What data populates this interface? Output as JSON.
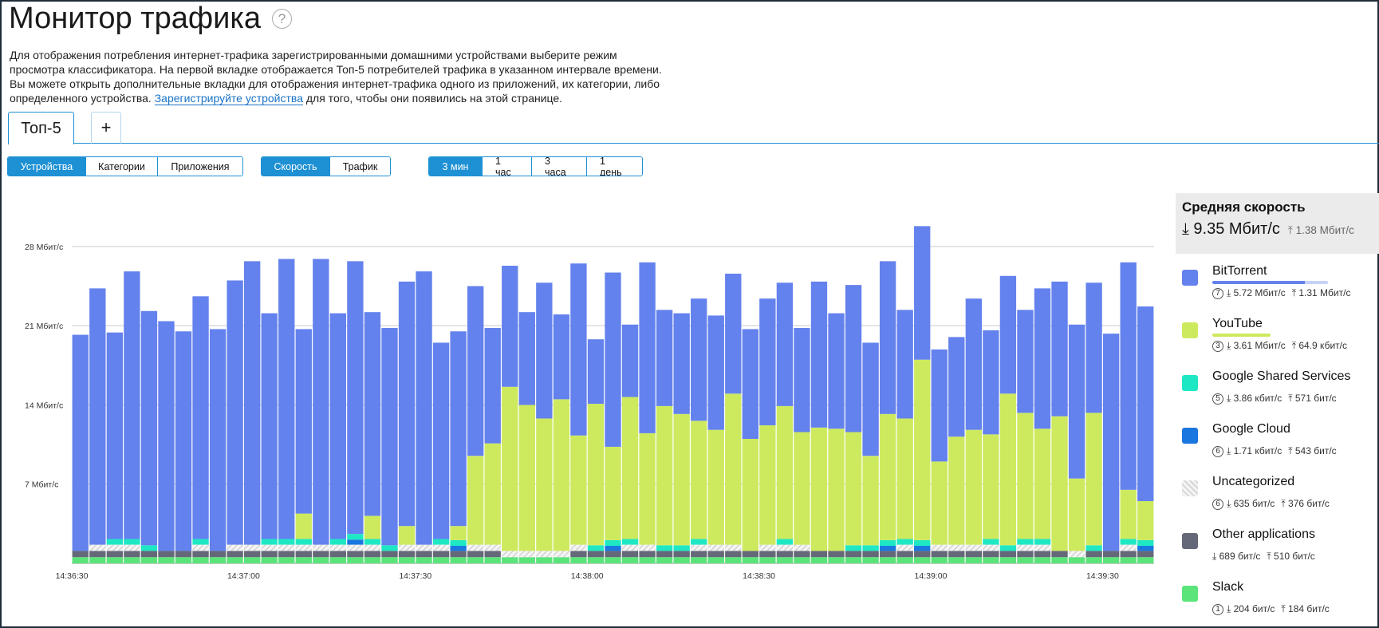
{
  "title": "Монитор трафика",
  "help_icon": "question-circle-icon",
  "description": {
    "line1": "Для отображения потребления интернет-трафика зарегистрированными домашними устройствами выберите режим",
    "line2": "просмотра классификатора. На первой вкладке отображается Топ-5 потребителей трафика в указанном интервале времени.",
    "line3": "Вы можете открыть дополнительные вкладки для отображения интернет-трафика одного из приложений, их категории, либо",
    "line4_pre": "определенного устройства.",
    "link": "Зарегистрируйте устройства",
    "line4_post": "для того, чтобы они появились на этой странице."
  },
  "tabs": {
    "active": "Топ-5",
    "add": "+"
  },
  "mode": {
    "devices": "Устройства",
    "categories": "Категории",
    "apps": "Приложения"
  },
  "metric": {
    "speed": "Скорость",
    "traffic": "Трафик"
  },
  "range": {
    "r1": "3 мин",
    "r2": "1 час",
    "r3": "3 часа",
    "r4": "1 день"
  },
  "legend": {
    "title": "Средняя скорость",
    "avg_down": "⤓ 9.35 Мбит/с",
    "avg_up": "⤒ 1.38 Мбит/с",
    "items": [
      {
        "name": "BitTorrent",
        "color": "#6482ed",
        "rank": "7",
        "down": "⤓ 5.72 Мбит/с",
        "up": "⤒ 1.31 Мбит/с",
        "bar_fraction": 0.8,
        "bar2_fraction": 0.2
      },
      {
        "name": "YouTube",
        "color": "#cdea5f",
        "rank": "3",
        "down": "⤓ 3.61 Мбит/с",
        "up": "⤒ 64.9 кбит/с",
        "bar_fraction": 0.5,
        "bar2_fraction": 0
      },
      {
        "name": "Google Shared Services",
        "color": "#1ee8c4",
        "rank": "5",
        "down": "⤓ 3.86 кбит/с",
        "up": "⤒ 571 бит/с",
        "bar_fraction": 0,
        "bar2_fraction": 0
      },
      {
        "name": "Google Cloud",
        "color": "#1b77e0",
        "rank": "6",
        "down": "⤓ 1.71 кбит/с",
        "up": "⤒ 543 бит/с",
        "bar_fraction": 0,
        "bar2_fraction": 0
      },
      {
        "name": "Uncategorized",
        "color": "hatch",
        "rank": "6",
        "down": "⤓ 635 бит/с",
        "up": "⤒ 376 бит/с",
        "bar_fraction": 0,
        "bar2_fraction": 0
      },
      {
        "name": "Other applications",
        "color": "#646878",
        "rank": "",
        "down": "⤓ 689 бит/с",
        "up": "⤒ 510 бит/с",
        "bar_fraction": 0,
        "bar2_fraction": 0
      },
      {
        "name": "Slack",
        "color": "#5be47a",
        "rank": "1",
        "down": "⤓ 204 бит/с",
        "up": "⤒ 184 бит/с",
        "bar_fraction": 0,
        "bar2_fraction": 0
      }
    ]
  },
  "chart_data": {
    "type": "bar",
    "stacked": true,
    "y_unit": "Мбит/с",
    "ylim": [
      0,
      30
    ],
    "y_ticks": [
      7,
      14,
      21,
      28
    ],
    "y_tick_labels": [
      "7 Мбит/с",
      "14 Мбит/с",
      "21 Мбит/с",
      "28 Мбит/с"
    ],
    "x_tick_labels": [
      "14:36:30",
      "14:37:00",
      "14:37:30",
      "14:38:00",
      "14:38:30",
      "14:39:00",
      "14:39:30"
    ],
    "x_tick_bar_index": [
      0,
      10,
      20,
      30,
      40,
      50,
      60
    ],
    "series_order": [
      "Slack",
      "Other applications",
      "Uncategorized",
      "Google Cloud",
      "Google Shared Services",
      "YouTube",
      "BitTorrent"
    ],
    "series_colors": [
      "#5be47a",
      "#646878",
      "hatch",
      "#1b77e0",
      "#1ee8c4",
      "#cdea5f",
      "#6482ed"
    ],
    "totals": [
      20.2,
      24.3,
      20.4,
      25.8,
      22.3,
      21.4,
      20.5,
      23.6,
      20.7,
      25.0,
      26.7,
      22.1,
      26.9,
      20.7,
      26.9,
      22.1,
      26.7,
      22.2,
      20.8,
      24.9,
      25.8,
      19.5,
      20.5,
      24.5,
      20.8,
      26.3,
      22.2,
      24.8,
      22.0,
      26.5,
      19.8,
      25.7,
      21.1,
      26.6,
      22.4,
      22.1,
      23.4,
      21.9,
      25.6,
      20.7,
      23.4,
      24.8,
      20.8,
      24.9,
      22.1,
      24.6,
      19.5,
      26.7,
      22.4,
      29.8,
      18.9,
      20.0,
      23.4,
      20.6,
      25.4,
      22.4,
      24.3,
      24.9,
      21.1,
      24.8,
      20.3,
      26.6,
      22.7
    ],
    "youtube": [
      0,
      0,
      0,
      0,
      0,
      0,
      0,
      0,
      0,
      0,
      0,
      0,
      0.8,
      4.4,
      0,
      0,
      2.0,
      4.2,
      0,
      3.3,
      0,
      1.9,
      3.3,
      9.5,
      10.6,
      15.6,
      14.0,
      12.8,
      14.5,
      11.3,
      14.1,
      10.3,
      14.7,
      11.5,
      13.9,
      13.2,
      12.6,
      11.8,
      15.0,
      11.0,
      12.2,
      13.9,
      11.6,
      12.0,
      11.9,
      11.6,
      9.5,
      13.2,
      12.8,
      18.0,
      9.0,
      11.2,
      11.8,
      11.4,
      15.0,
      13.3,
      11.9,
      13.0,
      7.5,
      13.3,
      0,
      6.5,
      5.5
    ],
    "bittorrent": [
      20.2,
      24.3,
      20.4,
      25.8,
      22.3,
      21.4,
      20.5,
      23.6,
      20.7,
      25.0,
      26.7,
      22.1,
      26.1,
      16.3,
      26.9,
      22.1,
      24.7,
      18.0,
      20.8,
      21.6,
      25.8,
      17.6,
      17.2,
      15.0,
      10.2,
      10.7,
      8.2,
      12.0,
      7.5,
      15.2,
      5.7,
      15.4,
      6.4,
      15.1,
      8.5,
      8.9,
      10.8,
      10.1,
      10.6,
      9.7,
      11.2,
      10.9,
      9.2,
      12.9,
      10.2,
      13.0,
      10.0,
      13.5,
      9.6,
      11.8,
      9.9,
      8.8,
      11.6,
      9.2,
      10.4,
      9.1,
      12.4,
      11.9,
      13.6,
      11.5,
      20.3,
      20.1,
      17.2
    ]
  }
}
